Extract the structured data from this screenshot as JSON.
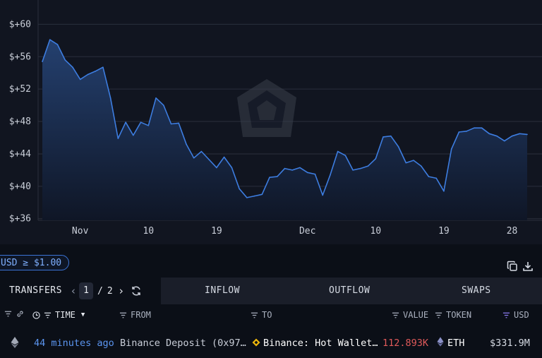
{
  "chart_data": {
    "type": "area",
    "y_tick_labels": [
      "$+60",
      "$+56",
      "$+52",
      "$+48",
      "$+44",
      "$+40",
      "$+36"
    ],
    "y_ticks": [
      60,
      56,
      52,
      48,
      44,
      40,
      36
    ],
    "ylim": [
      35.8,
      63
    ],
    "x_tick_labels": [
      "Nov",
      "10",
      "19",
      "Dec",
      "10",
      "19",
      "28"
    ],
    "x_ticks": [
      "2024-11-01",
      "2024-11-10",
      "2024-11-19",
      "2024-12-01",
      "2024-12-10",
      "2024-12-19",
      "2024-12-28"
    ],
    "x": [
      "2024-10-27",
      "2024-10-28",
      "2024-10-29",
      "2024-10-30",
      "2024-10-31",
      "2024-11-01",
      "2024-11-02",
      "2024-11-03",
      "2024-11-04",
      "2024-11-05",
      "2024-11-06",
      "2024-11-07",
      "2024-11-08",
      "2024-11-09",
      "2024-11-10",
      "2024-11-11",
      "2024-11-12",
      "2024-11-13",
      "2024-11-14",
      "2024-11-15",
      "2024-11-16",
      "2024-11-17",
      "2024-11-18",
      "2024-11-19",
      "2024-11-20",
      "2024-11-21",
      "2024-11-22",
      "2024-11-23",
      "2024-11-24",
      "2024-11-25",
      "2024-11-26",
      "2024-11-27",
      "2024-11-28",
      "2024-11-29",
      "2024-11-30",
      "2024-12-01",
      "2024-12-02",
      "2024-12-03",
      "2024-12-04",
      "2024-12-05",
      "2024-12-06",
      "2024-12-07",
      "2024-12-08",
      "2024-12-09",
      "2024-12-10",
      "2024-12-11",
      "2024-12-12",
      "2024-12-13",
      "2024-12-14",
      "2024-12-15",
      "2024-12-16",
      "2024-12-17",
      "2024-12-18",
      "2024-12-19",
      "2024-12-20",
      "2024-12-21",
      "2024-12-22",
      "2024-12-23",
      "2024-12-24",
      "2024-12-25",
      "2024-12-26",
      "2024-12-27",
      "2024-12-28",
      "2024-12-29",
      "2024-12-30"
    ],
    "values": [
      55.4,
      58.1,
      57.5,
      55.6,
      54.7,
      53.2,
      53.8,
      54.2,
      54.7,
      50.9,
      45.9,
      47.9,
      46.3,
      47.9,
      47.5,
      50.9,
      50.0,
      47.7,
      47.8,
      45.2,
      43.5,
      44.3,
      43.3,
      42.3,
      43.6,
      42.3,
      39.7,
      38.6,
      38.8,
      39.0,
      41.1,
      41.2,
      42.2,
      42.0,
      42.3,
      41.7,
      41.5,
      38.9,
      41.4,
      44.3,
      43.8,
      42.0,
      42.2,
      42.5,
      43.4,
      46.1,
      46.2,
      44.9,
      42.9,
      43.2,
      42.5,
      41.2,
      41.0,
      39.4,
      44.6,
      46.7,
      46.8,
      47.2,
      47.2,
      46.5,
      46.2,
      45.6,
      46.2,
      46.5,
      46.4
    ],
    "grid": true,
    "colors": {
      "line": "#3d7de0",
      "fill_top": "#24406f",
      "fill_bottom": "#0f1626",
      "grid": "#2a2f3c"
    }
  },
  "filter": {
    "label": "USD ≥ $1.00"
  },
  "toolbar": {
    "copy_icon": "copy-icon",
    "download_icon": "download-icon"
  },
  "tabs": {
    "transfers": "TRANSFERS",
    "page_current": "1",
    "page_sep": "/",
    "page_total": "2",
    "inflow": "INFLOW",
    "outflow": "OUTFLOW",
    "swaps": "SWAPS"
  },
  "columns": {
    "time": "TIME",
    "from": "FROM",
    "to": "TO",
    "value": "VALUE",
    "token": "TOKEN",
    "usd": "USD"
  },
  "rows": [
    {
      "chain_icon": "ethereum-icon",
      "time": "44 minutes ago",
      "from": "Binance Deposit (0x97…",
      "to_icon": "binance-icon",
      "to": "Binance: Hot Wallet…",
      "value": "112.893K",
      "token": "ETH",
      "usd": "$331.9M"
    }
  ],
  "colors": {
    "accent": "#3b74d6",
    "value_red": "#e05a5a",
    "link_blue": "#5b95f0",
    "binance": "#f0b90b"
  }
}
